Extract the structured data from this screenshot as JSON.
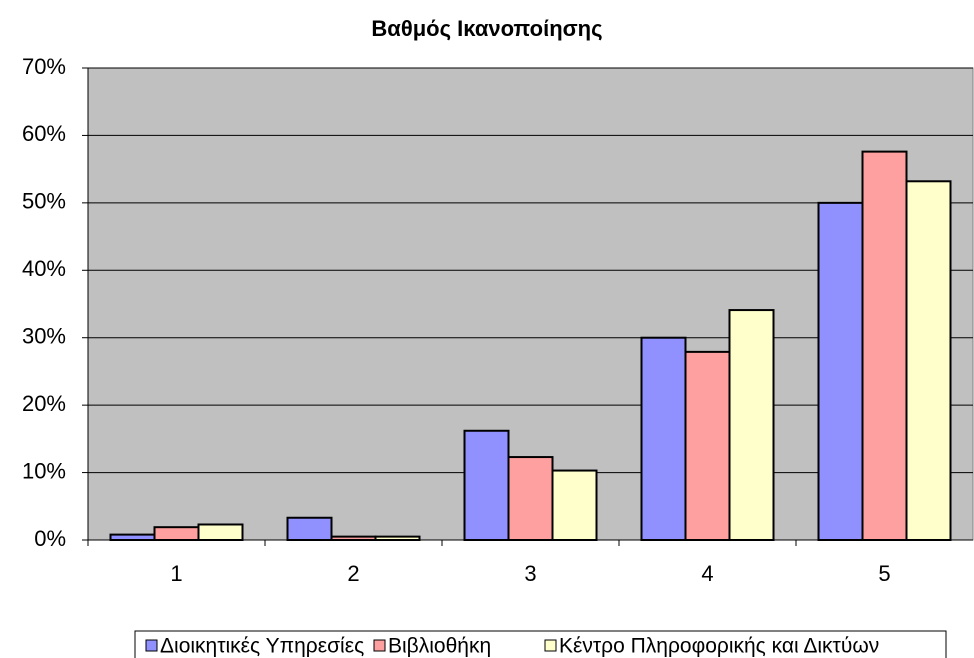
{
  "chart_data": {
    "type": "bar",
    "title": "Βαθμός Ικανοποίησης",
    "categories": [
      "1",
      "2",
      "3",
      "4",
      "5"
    ],
    "series": [
      {
        "name": "Διοικητικές Υπηρεσίες",
        "color": "#9090ff",
        "values": [
          0.8,
          3.3,
          16.2,
          30.0,
          50.0
        ]
      },
      {
        "name": "Βιβλιοθήκη",
        "color": "#ffa0a0",
        "values": [
          1.9,
          0.5,
          12.3,
          27.9,
          57.6
        ]
      },
      {
        "name": "Κέντρο Πληροφορικής και Δικτύων",
        "color": "#ffffcc",
        "values": [
          2.3,
          0.5,
          10.3,
          34.1,
          53.2
        ]
      }
    ],
    "ylim": [
      0,
      70
    ],
    "yticks": [
      {
        "value": 0,
        "label": "0%"
      },
      {
        "value": 10,
        "label": "10%"
      },
      {
        "value": 20,
        "label": "20%"
      },
      {
        "value": 30,
        "label": "30%"
      },
      {
        "value": 40,
        "label": "40%"
      },
      {
        "value": 50,
        "label": "50%"
      },
      {
        "value": 60,
        "label": "60%"
      },
      {
        "value": 70,
        "label": "70%"
      }
    ],
    "grid": true
  }
}
